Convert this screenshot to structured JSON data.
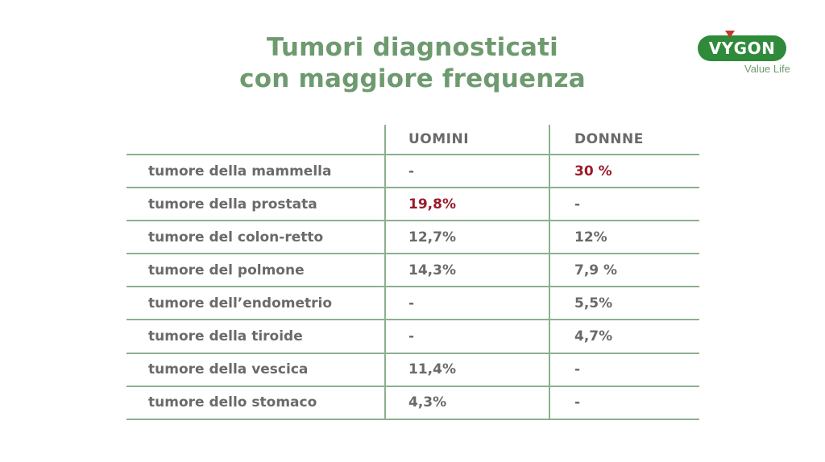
{
  "title": {
    "line1": "Tumori diagnosticati",
    "line2": "con maggiore frequenza"
  },
  "logo": {
    "brand": "VYGON",
    "tagline": "Value Life"
  },
  "colors": {
    "title": "#6e9a6f",
    "text": "#6a6a6a",
    "highlight": "#9b1b2a",
    "grid": "#8cb08e",
    "logo_green": "#2f8a3a",
    "logo_triangle": "#c0392b"
  },
  "table": {
    "headers": [
      "",
      "UOMINI",
      "DONNNE"
    ],
    "rows": [
      {
        "label": "tumore della mammella",
        "uomini": "-",
        "donne": "30 %",
        "highlight": "donne"
      },
      {
        "label": "tumore della prostata",
        "uomini": "19,8%",
        "donne": "-",
        "highlight": "uomini"
      },
      {
        "label": "tumore del colon-retto",
        "uomini": "12,7%",
        "donne": "12%",
        "highlight": ""
      },
      {
        "label": "tumore del polmone",
        "uomini": "14,3%",
        "donne": "7,9 %",
        "highlight": ""
      },
      {
        "label": "tumore dell’endometrio",
        "uomini": "-",
        "donne": "5,5%",
        "highlight": ""
      },
      {
        "label": "tumore della tiroide",
        "uomini": "-",
        "donne": "4,7%",
        "highlight": ""
      },
      {
        "label": "tumore della vescica",
        "uomini": "11,4%",
        "donne": "-",
        "highlight": ""
      },
      {
        "label": "tumore dello stomaco",
        "uomini": "4,3%",
        "donne": "-",
        "highlight": ""
      }
    ]
  }
}
